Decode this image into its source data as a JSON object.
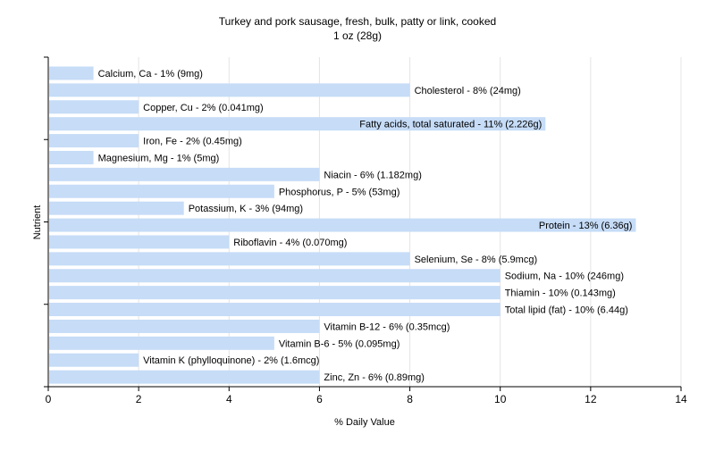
{
  "chart_data": {
    "type": "bar",
    "orientation": "horizontal",
    "title": "Turkey and pork sausage, fresh, bulk, patty or link, cooked",
    "subtitle": "1 oz (28g)",
    "xlabel": "% Daily Value",
    "ylabel": "Nutrient",
    "xlim": [
      0,
      14
    ],
    "x_ticks": [
      0,
      2,
      4,
      6,
      8,
      10,
      12,
      14
    ],
    "grid": true,
    "bar_color": "#c6dcf7",
    "categories": [
      "Calcium, Ca",
      "Cholesterol",
      "Copper, Cu",
      "Fatty acids, total saturated",
      "Iron, Fe",
      "Magnesium, Mg",
      "Niacin",
      "Phosphorus, P",
      "Potassium, K",
      "Protein",
      "Riboflavin",
      "Selenium, Se",
      "Sodium, Na",
      "Thiamin",
      "Total lipid (fat)",
      "Vitamin B-12",
      "Vitamin B-6",
      "Vitamin K (phylloquinone)",
      "Zinc, Zn"
    ],
    "values": [
      1,
      8,
      2,
      11,
      2,
      1,
      6,
      5,
      3,
      13,
      4,
      8,
      10,
      10,
      10,
      6,
      5,
      2,
      6
    ],
    "labels": [
      "Calcium, Ca - 1% (9mg)",
      "Cholesterol - 8% (24mg)",
      "Copper, Cu - 2% (0.041mg)",
      "Fatty acids, total saturated - 11% (2.226g)",
      "Iron, Fe - 2% (0.45mg)",
      "Magnesium, Mg - 1% (5mg)",
      "Niacin - 6% (1.182mg)",
      "Phosphorus, P - 5% (53mg)",
      "Potassium, K - 3% (94mg)",
      "Protein - 13% (6.36g)",
      "Riboflavin - 4% (0.070mg)",
      "Selenium, Se - 8% (5.9mcg)",
      "Sodium, Na - 10% (246mg)",
      "Thiamin - 10% (0.143mg)",
      "Total lipid (fat) - 10% (6.44g)",
      "Vitamin B-12 - 6% (0.35mcg)",
      "Vitamin B-6 - 5% (0.095mg)",
      "Vitamin K (phylloquinone) - 2% (1.6mcg)",
      "Zinc, Zn - 6% (0.89mg)"
    ]
  }
}
